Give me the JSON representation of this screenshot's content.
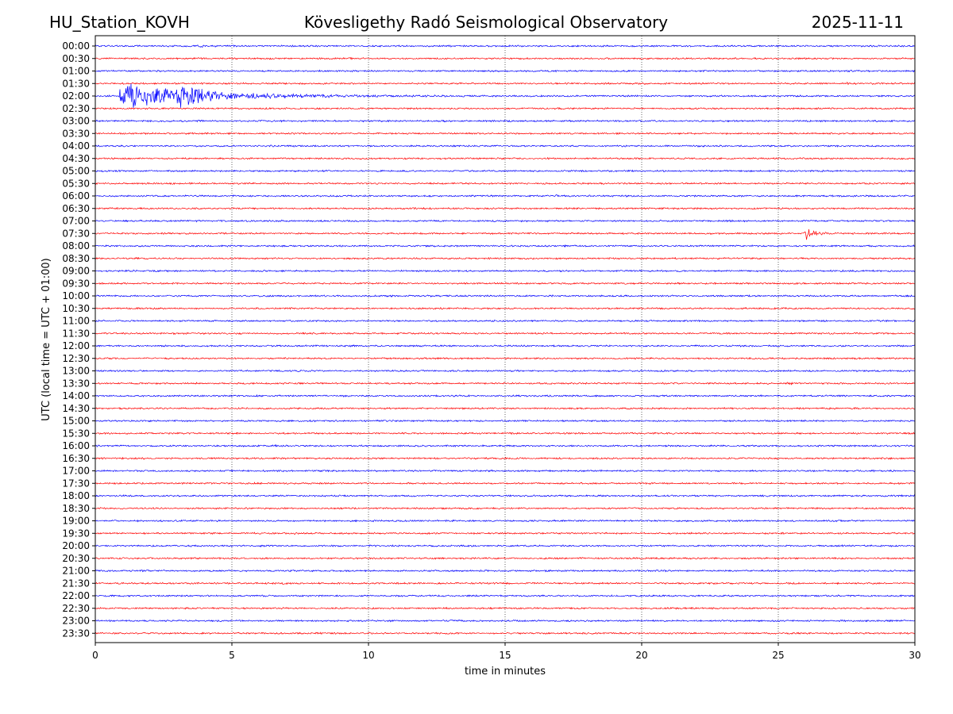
{
  "header": {
    "station": "HU_Station_KOVH",
    "observatory": "Kövesligethy Radó Seismological Observatory",
    "date": "2025-11-11"
  },
  "chart_data": {
    "type": "line",
    "subtype": "helicorder",
    "xlabel": "time in minutes",
    "ylabel": "UTC (local time = UTC + 01:00)",
    "xlim": [
      0,
      30
    ],
    "x_ticks": [
      0,
      5,
      10,
      15,
      20,
      25,
      30
    ],
    "grid": "vertical dotted lines at x = 5, 10, 15, 20, 25",
    "trace_colors": [
      "#0000ff",
      "#ff0000"
    ],
    "rows": [
      {
        "label": "00:00",
        "color": "#0000ff",
        "events": [
          {
            "t": 3.8,
            "amp": 0.5,
            "dur": 1.6
          }
        ]
      },
      {
        "label": "00:30",
        "color": "#ff0000",
        "events": []
      },
      {
        "label": "01:00",
        "color": "#0000ff",
        "events": []
      },
      {
        "label": "01:30",
        "color": "#ff0000",
        "events": [
          {
            "t": 27.5,
            "amp": 0.4,
            "dur": 1.5
          }
        ]
      },
      {
        "label": "02:00",
        "color": "#0000ff",
        "events": [
          {
            "t": 0.9,
            "amp": 9,
            "dur": 8
          },
          {
            "t": 3.0,
            "amp": 5,
            "dur": 2
          }
        ]
      },
      {
        "label": "02:30",
        "color": "#ff0000",
        "events": []
      },
      {
        "label": "03:00",
        "color": "#0000ff",
        "events": []
      },
      {
        "label": "03:30",
        "color": "#ff0000",
        "events": []
      },
      {
        "label": "04:00",
        "color": "#0000ff",
        "events": []
      },
      {
        "label": "04:30",
        "color": "#ff0000",
        "events": []
      },
      {
        "label": "05:00",
        "color": "#0000ff",
        "events": []
      },
      {
        "label": "05:30",
        "color": "#ff0000",
        "events": []
      },
      {
        "label": "06:00",
        "color": "#0000ff",
        "events": [
          {
            "t": 16.8,
            "amp": 0.4,
            "dur": 1
          }
        ]
      },
      {
        "label": "06:30",
        "color": "#ff0000",
        "events": []
      },
      {
        "label": "07:00",
        "color": "#0000ff",
        "events": []
      },
      {
        "label": "07:30",
        "color": "#ff0000",
        "events": [
          {
            "t": 26.0,
            "amp": 4,
            "dur": 0.8
          }
        ]
      },
      {
        "label": "08:00",
        "color": "#0000ff",
        "events": []
      },
      {
        "label": "08:30",
        "color": "#ff0000",
        "events": []
      },
      {
        "label": "09:00",
        "color": "#0000ff",
        "events": []
      },
      {
        "label": "09:30",
        "color": "#ff0000",
        "events": []
      },
      {
        "label": "10:00",
        "color": "#0000ff",
        "events": []
      },
      {
        "label": "10:30",
        "color": "#ff0000",
        "events": []
      },
      {
        "label": "11:00",
        "color": "#0000ff",
        "events": []
      },
      {
        "label": "11:30",
        "color": "#ff0000",
        "events": []
      },
      {
        "label": "12:00",
        "color": "#0000ff",
        "events": []
      },
      {
        "label": "12:30",
        "color": "#ff0000",
        "events": []
      },
      {
        "label": "13:00",
        "color": "#0000ff",
        "events": []
      },
      {
        "label": "13:30",
        "color": "#ff0000",
        "events": [
          {
            "t": 25.3,
            "amp": 0.5,
            "dur": 0.6
          }
        ]
      },
      {
        "label": "14:00",
        "color": "#0000ff",
        "events": []
      },
      {
        "label": "14:30",
        "color": "#ff0000",
        "events": []
      },
      {
        "label": "15:00",
        "color": "#0000ff",
        "events": []
      },
      {
        "label": "15:30",
        "color": "#ff0000",
        "events": []
      },
      {
        "label": "16:00",
        "color": "#0000ff",
        "events": [
          {
            "t": 6.5,
            "amp": 0.5,
            "dur": 1
          }
        ]
      },
      {
        "label": "16:30",
        "color": "#ff0000",
        "events": []
      },
      {
        "label": "17:00",
        "color": "#0000ff",
        "events": []
      },
      {
        "label": "17:30",
        "color": "#ff0000",
        "events": []
      },
      {
        "label": "18:00",
        "color": "#0000ff",
        "events": []
      },
      {
        "label": "18:30",
        "color": "#ff0000",
        "events": [
          {
            "t": 14.0,
            "amp": 0.4,
            "dur": 0.5
          }
        ]
      },
      {
        "label": "19:00",
        "color": "#0000ff",
        "events": []
      },
      {
        "label": "19:30",
        "color": "#ff0000",
        "events": []
      },
      {
        "label": "20:00",
        "color": "#0000ff",
        "events": []
      },
      {
        "label": "20:30",
        "color": "#ff0000",
        "events": []
      },
      {
        "label": "21:00",
        "color": "#0000ff",
        "events": []
      },
      {
        "label": "21:30",
        "color": "#ff0000",
        "events": []
      },
      {
        "label": "22:00",
        "color": "#0000ff",
        "events": []
      },
      {
        "label": "22:30",
        "color": "#ff0000",
        "events": []
      },
      {
        "label": "23:00",
        "color": "#0000ff",
        "events": []
      },
      {
        "label": "23:30",
        "color": "#ff0000",
        "events": []
      }
    ]
  }
}
